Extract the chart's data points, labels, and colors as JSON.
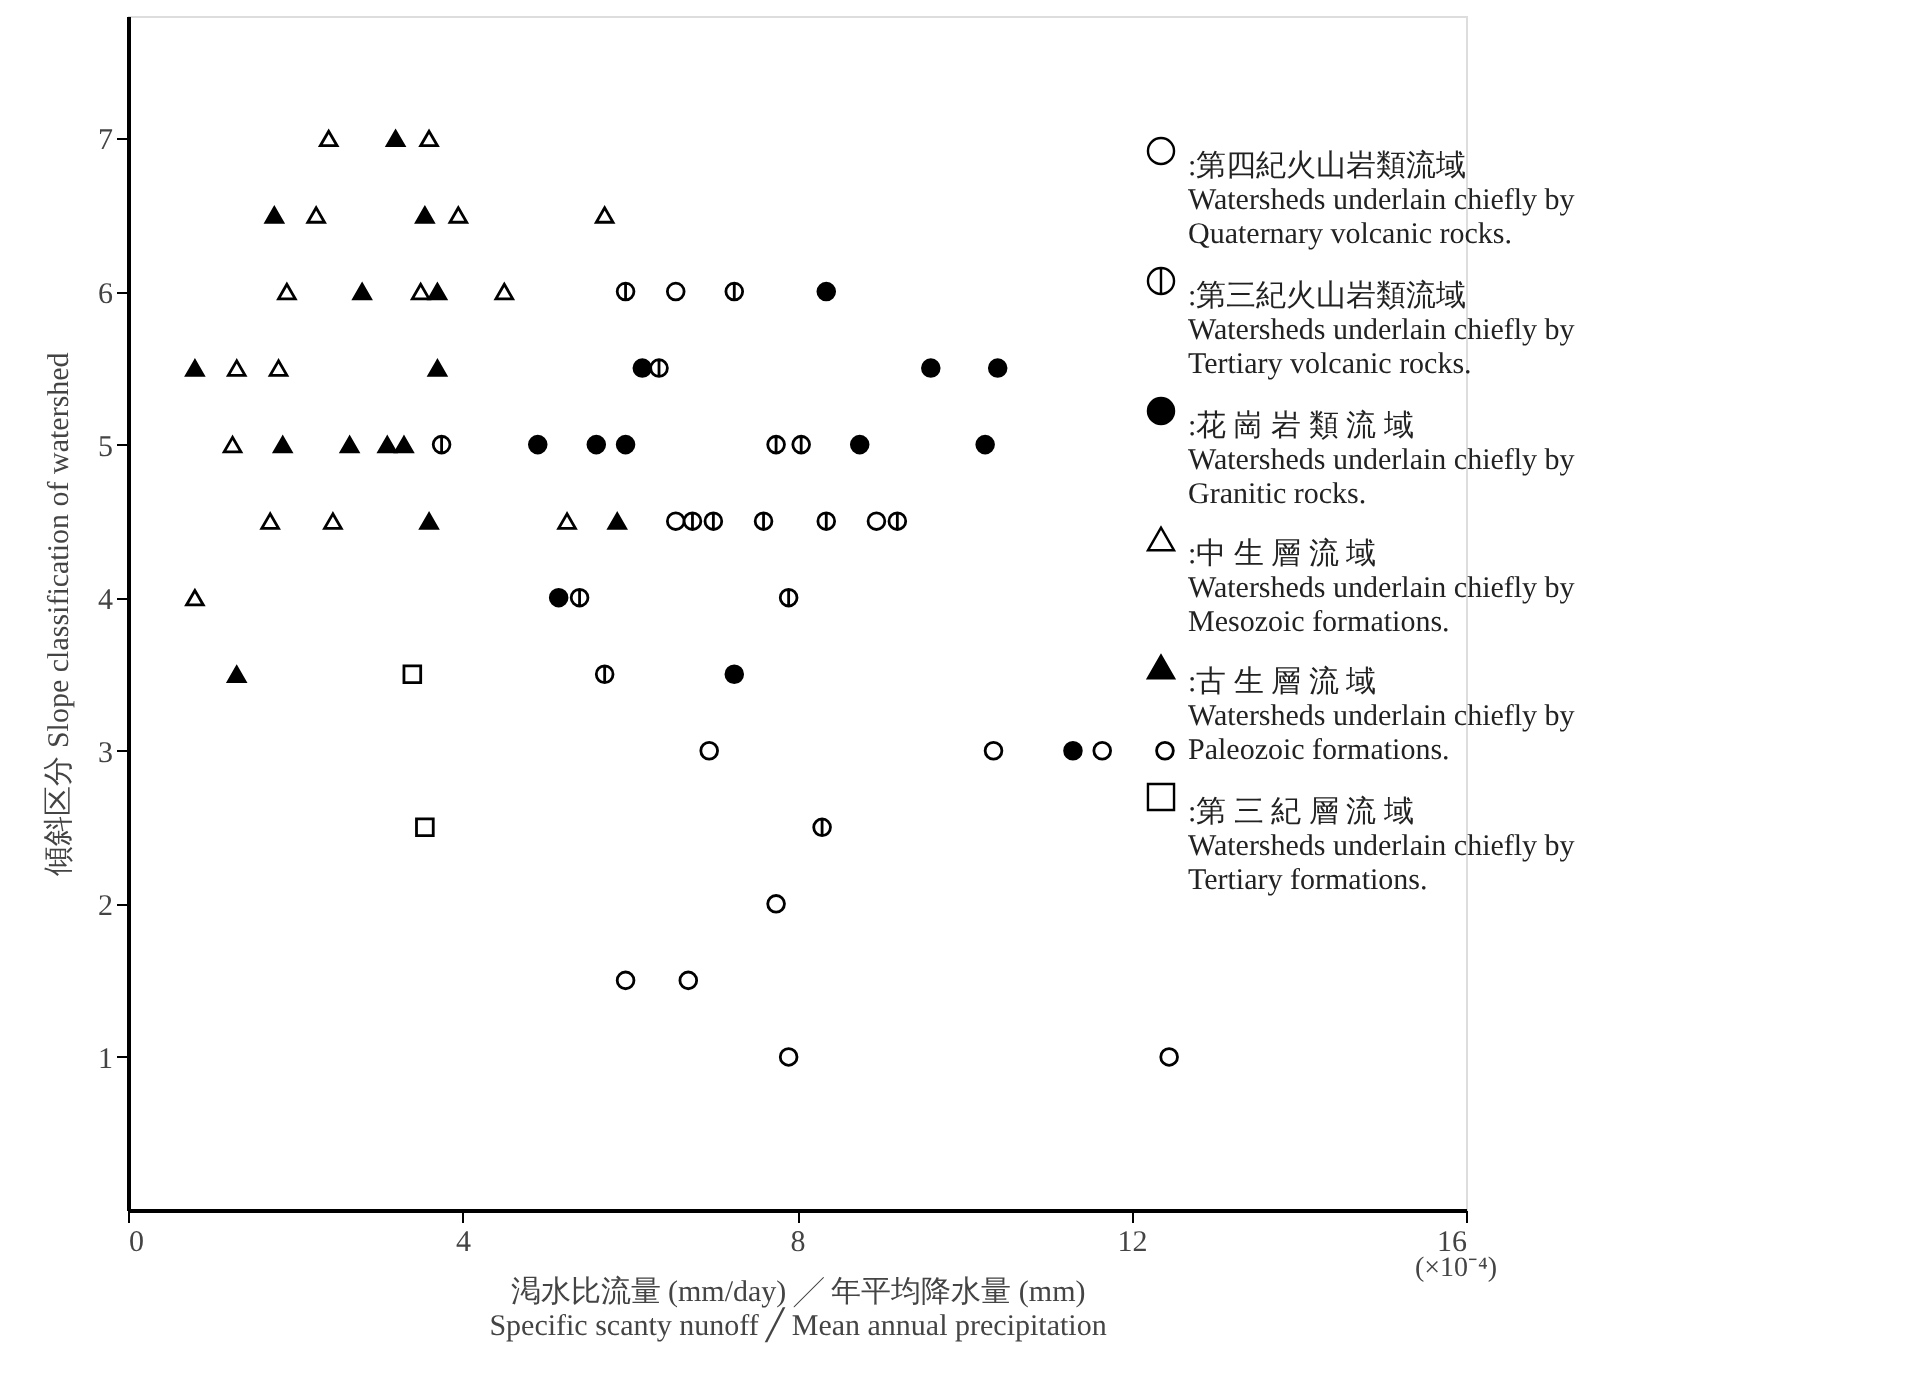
{
  "chart_data": {
    "type": "scatter",
    "xlabel": "渇水比流量 (mm/day) ╱ 年平均降水量 (mm)\nSpecific scanty nunoff ╱ Mean annual precipitation",
    "ylabel": "傾斜区分  Slope classification of watershed",
    "annotations": [
      "(×10⁻⁴)"
    ],
    "xlim": [
      0,
      16
    ],
    "xticks": [
      0,
      4,
      8,
      12,
      16
    ],
    "ylim": [
      0,
      7.8
    ],
    "yticks": [
      1,
      2,
      3,
      4,
      5,
      6,
      7
    ],
    "grid": false,
    "legend": "top right",
    "series": [
      {
        "name": ":第四紀火山岩類流域\nWatersheds underlain chiefly by\nQuaternary volcanic rocks.",
        "color": "#ffffff",
        "marker": "circle",
        "x": [
          6.55,
          6.55,
          8.95,
          6.95,
          7.75,
          5.95,
          6.7,
          7.9,
          10.35,
          11.65,
          12.4,
          12.45
        ],
        "values": [
          6,
          4.5,
          4.5,
          3,
          2,
          1.5,
          1.5,
          1,
          3,
          3,
          3,
          1
        ]
      },
      {
        "name": ":第三紀火山岩類流域\nWatersheds underlain chiefly by\nTertiary volcanic rocks.",
        "color": "#ffffff",
        "marker": "cross",
        "x": [
          5.95,
          7.25,
          6.35,
          3.75,
          7.75,
          8.05,
          6.75,
          7.0,
          7.6,
          8.35,
          9.2,
          5.4,
          7.9,
          5.7,
          8.3
        ],
        "values": [
          6,
          6,
          5.5,
          5,
          5,
          5,
          4.5,
          4.5,
          4.5,
          4.5,
          4.5,
          4,
          4,
          3.5,
          2.5
        ]
      },
      {
        "name": ":花 崗 岩 類 流 域\nWatersheds underlain chiefly by\nGranitic rocks.",
        "color": "#000000",
        "marker": "circle",
        "x": [
          4.9,
          5.6,
          5.95,
          6.15,
          5.15,
          8.35,
          8.75,
          9.6,
          10.4,
          10.25,
          7.25,
          11.3
        ],
        "values": [
          5,
          5,
          5,
          5.5,
          4,
          6,
          5,
          5.5,
          5.5,
          5,
          3.5,
          3
        ]
      },
      {
        "name": ":中  生  層  流  域\nWatersheds underlain chiefly by\nMesozoic formations.",
        "color": "#ffffff",
        "marker": "triangle",
        "x": [
          2.4,
          3.6,
          2.25,
          3.95,
          5.7,
          1.9,
          3.5,
          4.5,
          1.3,
          1.8,
          1.25,
          1.7,
          2.45,
          5.25,
          0.8
        ],
        "values": [
          7,
          7,
          6.5,
          6.5,
          6.5,
          6,
          6,
          6,
          5.5,
          5.5,
          5,
          4.5,
          4.5,
          4.5,
          4
        ]
      },
      {
        "name": ":古  生  層  流  域\nWatersheds underlain chiefly by\nPaleozoic formations.",
        "color": "#000000",
        "marker": "triangle",
        "x": [
          3.2,
          1.75,
          3.55,
          2.8,
          3.7,
          0.8,
          3.7,
          1.85,
          2.65,
          3.1,
          3.3,
          3.6,
          5.85,
          1.3
        ],
        "values": [
          7,
          6.5,
          6.5,
          6,
          6,
          5.5,
          5.5,
          5,
          5,
          5,
          5,
          4.5,
          4.5,
          3.5
        ]
      },
      {
        "name": ":第 三 紀 層 流 域\nWatersheds underlain chiefly by\nTertiary formations.",
        "color": "#ffffff",
        "marker": "square",
        "x": [
          3.4,
          3.55
        ],
        "values": [
          3.5,
          2.5
        ]
      }
    ]
  }
}
